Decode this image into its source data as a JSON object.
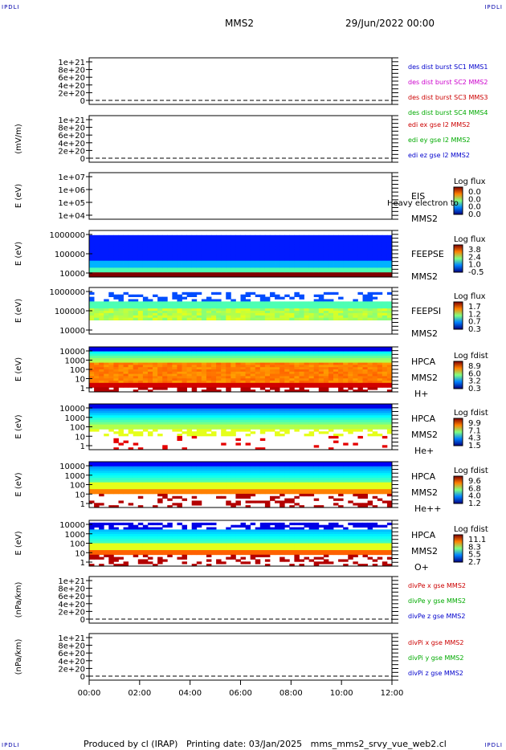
{
  "corners": {
    "tl": "IPDLI",
    "tr": "IPDLI",
    "bl": "IPDLI",
    "br": "IPDLI"
  },
  "header": {
    "mission": "MMS2",
    "date": "29/Jun/2022 00:00"
  },
  "footer": {
    "text": "Produced by cl (IRAP)   Printing date: 03/Jan/2025   mms_mms2_srvy_vue_web2.cl"
  },
  "chart_data": [
    {
      "type": "line",
      "ylabel": "",
      "yticks": [
        "1e+21",
        "8e+20",
        "6e+20",
        "4e+20",
        "2e+20",
        "0"
      ],
      "legend": [
        {
          "name": "des dist burst SC1 MMS1",
          "color": "#0000cc"
        },
        {
          "name": "des dist burst SC2 MMS2",
          "color": "#cc00cc"
        },
        {
          "name": "des dist burst SC3 MMS3",
          "color": "#cc0000"
        },
        {
          "name": "des dist burst SC4 MMS4",
          "color": "#00aa00"
        }
      ]
    },
    {
      "type": "line",
      "ylabel": "(mV/m)",
      "yticks": [
        "1e+21",
        "8e+20",
        "6e+20",
        "4e+20",
        "2e+20",
        "0"
      ],
      "legend": [
        {
          "name": "edi ex gse l2 MMS2",
          "color": "#cc0000"
        },
        {
          "name": "edi ey gse l2 MMS2",
          "color": "#00aa00"
        },
        {
          "name": "edi ez gse l2 MMS2",
          "color": "#0000cc"
        }
      ]
    },
    {
      "type": "heatmap",
      "ylabel": "E (eV)",
      "yticks": [
        "1e+07",
        "1e+06",
        "1e+05",
        "1e+04"
      ],
      "instrument": [
        "EIS",
        "MMS2"
      ],
      "overlay": "Heavy electron to",
      "cbar_title": "Log flux",
      "cbar_ticks": [
        "0.0",
        "0.0",
        "0.0",
        "0.0"
      ]
    },
    {
      "type": "heatmap",
      "ylabel": "E (eV)",
      "yticks": [
        "1000000",
        "100000",
        "10000"
      ],
      "instrument": [
        "FEEPSE",
        "MMS2"
      ],
      "cbar_title": "Log flux",
      "cbar_ticks": [
        "3.8",
        "2.4",
        "1.0",
        "-0.5"
      ]
    },
    {
      "type": "heatmap",
      "ylabel": "E (eV)",
      "yticks": [
        "1000000",
        "100000",
        "10000"
      ],
      "instrument": [
        "FEEPSI",
        "MMS2"
      ],
      "cbar_title": "Log flux",
      "cbar_ticks": [
        "1.7",
        "1.2",
        "0.7",
        "0.3"
      ]
    },
    {
      "type": "heatmap",
      "ylabel": "E (eV)",
      "yticks": [
        "10000",
        "1000",
        "100",
        "10",
        "1"
      ],
      "instrument": [
        "HPCA",
        "MMS2",
        "H+"
      ],
      "cbar_title": "Log fdist",
      "cbar_ticks": [
        "8.9",
        "6.0",
        "3.2",
        "0.3"
      ]
    },
    {
      "type": "heatmap",
      "ylabel": "E (eV)",
      "yticks": [
        "10000",
        "1000",
        "100",
        "10",
        "1"
      ],
      "instrument": [
        "HPCA",
        "MMS2",
        "He+"
      ],
      "cbar_title": "Log fdist",
      "cbar_ticks": [
        "9.9",
        "7.1",
        "4.3",
        "1.5"
      ]
    },
    {
      "type": "heatmap",
      "ylabel": "E (eV)",
      "yticks": [
        "10000",
        "1000",
        "100",
        "10",
        "1"
      ],
      "instrument": [
        "HPCA",
        "MMS2",
        "He++"
      ],
      "cbar_title": "Log fdist",
      "cbar_ticks": [
        "9.6",
        "6.8",
        "4.0",
        "1.2"
      ]
    },
    {
      "type": "heatmap",
      "ylabel": "E (eV)",
      "yticks": [
        "10000",
        "1000",
        "100",
        "10",
        "1"
      ],
      "instrument": [
        "HPCA",
        "MMS2",
        "O+"
      ],
      "cbar_title": "Log fdist",
      "cbar_ticks": [
        "11.1",
        "8.3",
        "5.5",
        "2.7"
      ]
    },
    {
      "type": "line",
      "ylabel": "(nPa/km)",
      "yticks": [
        "1e+21",
        "8e+20",
        "6e+20",
        "4e+20",
        "2e+20",
        "0"
      ],
      "legend": [
        {
          "name": "divPe x gse MMS2",
          "color": "#cc0000"
        },
        {
          "name": "divPe y gse MMS2",
          "color": "#00aa00"
        },
        {
          "name": "divPe z gse MMS2",
          "color": "#0000cc"
        }
      ]
    },
    {
      "type": "line",
      "ylabel": "(nPa/km)",
      "yticks": [
        "1e+21",
        "8e+20",
        "6e+20",
        "4e+20",
        "2e+20",
        "0"
      ],
      "legend": [
        {
          "name": "divPi x gse MMS2",
          "color": "#cc0000"
        },
        {
          "name": "divPi y gse MMS2",
          "color": "#00aa00"
        },
        {
          "name": "divPi z gse MMS2",
          "color": "#0000cc"
        }
      ]
    }
  ],
  "xticks": [
    "00:00",
    "02:00",
    "04:00",
    "06:00",
    "08:00",
    "10:00",
    "12:00"
  ]
}
